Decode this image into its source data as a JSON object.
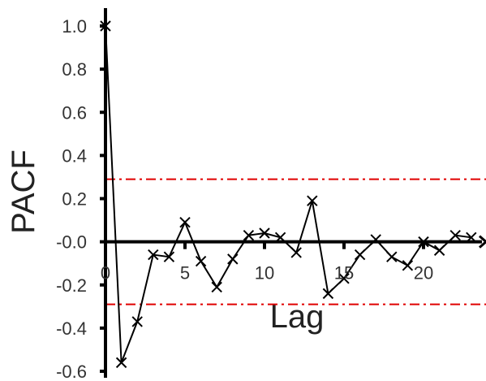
{
  "chart_data": {
    "type": "line",
    "xlabel": "Lag",
    "ylabel": "PACF",
    "xlim": [
      0,
      24
    ],
    "ylim": [
      -0.62,
      1.07
    ],
    "x_ticks": [
      0,
      5,
      10,
      15,
      20
    ],
    "x_tick_labels": [
      "0",
      "5",
      "10",
      "15",
      "20"
    ],
    "y_ticks": [
      1.0,
      0.8,
      0.6,
      0.4,
      0.2,
      0.0,
      -0.2,
      -0.4,
      -0.6
    ],
    "y_tick_labels": [
      "1.0",
      "0.8",
      "0.6",
      "0.4",
      "0.2",
      "-0.0",
      "-0.2",
      "-0.4",
      "-0.6"
    ],
    "grid": false,
    "marker": "x",
    "series": [
      {
        "color": "#000000",
        "x": [
          0,
          1,
          2,
          3,
          4,
          5,
          6,
          7,
          8,
          9,
          10,
          11,
          12,
          13,
          14,
          15,
          16,
          17,
          18,
          19,
          20,
          21,
          22,
          23
        ],
        "values": [
          1.0,
          -0.56,
          -0.37,
          -0.06,
          -0.07,
          0.09,
          -0.09,
          -0.21,
          -0.08,
          0.03,
          0.04,
          0.02,
          -0.05,
          0.19,
          -0.24,
          -0.17,
          -0.06,
          0.01,
          -0.07,
          -0.11,
          0.0,
          -0.04,
          0.03,
          0.02
        ]
      }
    ],
    "confidence_bounds": {
      "upper": 0.29,
      "lower": -0.29,
      "color": "#e00000",
      "style": "dash-dot"
    },
    "axis_color": "#000000"
  }
}
